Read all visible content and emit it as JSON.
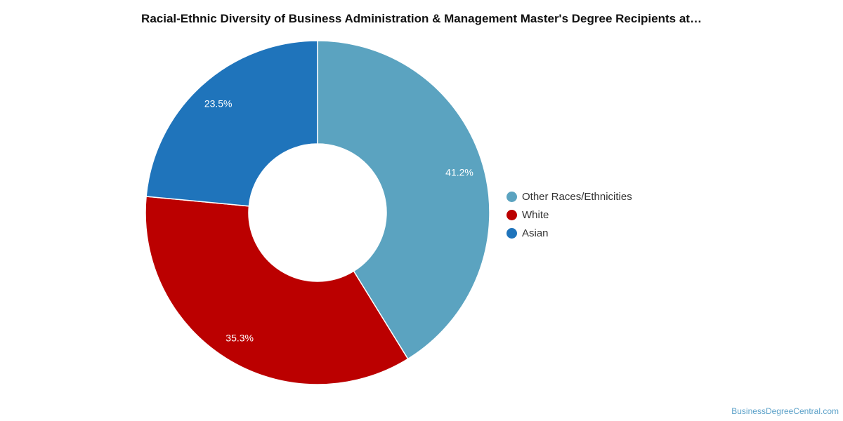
{
  "chart_data": {
    "type": "pie",
    "style": "donut",
    "title": "Racial-Ethnic Diversity of Business Administration & Management Master's Degree Recipients at…",
    "slices": [
      {
        "label": "Other Races/Ethnicities",
        "value": 41.2,
        "display": "41.2%",
        "color": "#5ba3c0"
      },
      {
        "label": "White",
        "value": 35.3,
        "display": "35.3%",
        "color": "#bb0000"
      },
      {
        "label": "Asian",
        "value": 23.5,
        "display": "23.5%",
        "color": "#1f74bb"
      }
    ],
    "start": "12 o'clock",
    "direction": "clockwise",
    "legend_position": "right"
  },
  "watermark": "BusinessDegreeCentral.com"
}
